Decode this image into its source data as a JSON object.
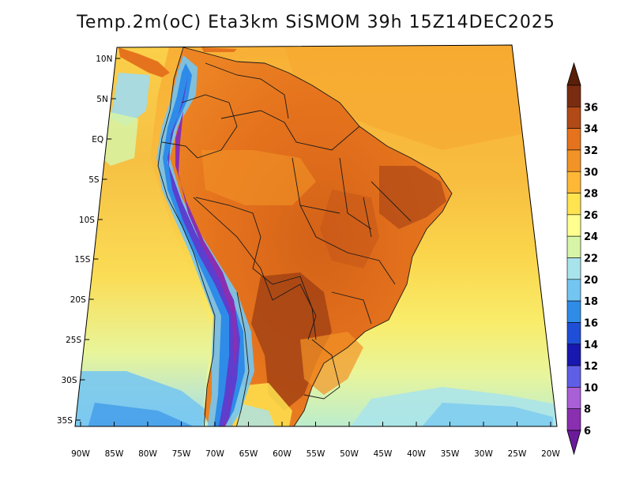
{
  "title": "Temp.2m(oC) Eta3km SiSMOM 39h 15Z14DEC2025",
  "map": {
    "variable": "2 m air temperature",
    "units": "oC",
    "lon_labels": [
      "90W",
      "85W",
      "80W",
      "75W",
      "70W",
      "65W",
      "60W",
      "55W",
      "50W",
      "45W",
      "40W",
      "35W",
      "30W",
      "25W",
      "20W"
    ],
    "lat_labels": [
      "10N",
      "5N",
      "EQ",
      "5S",
      "10S",
      "15S",
      "20S",
      "25S",
      "30S",
      "35S"
    ]
  },
  "colorbar": {
    "labels": [
      "6",
      "8",
      "10",
      "12",
      "14",
      "16",
      "18",
      "20",
      "22",
      "24",
      "26",
      "28",
      "30",
      "32",
      "34",
      "36"
    ],
    "colors": [
      "#8a2fb0",
      "#a95fd6",
      "#5e5ee6",
      "#1818b0",
      "#1f4fd8",
      "#2e8ce8",
      "#74c6f2",
      "#a9e4ec",
      "#d7f5a6",
      "#ffff8e",
      "#ffe34f",
      "#ffb835",
      "#f29327",
      "#e5731d",
      "#b14a17",
      "#7a2c10"
    ],
    "over_color": "#5a1f08",
    "under_color": "#6a1b9a"
  },
  "colors": {
    "ocean_north": "#f8ae33",
    "ocean_warm": "#f6c246",
    "ocean_mid": "#fbdf4d",
    "ocean_south": "#f4f58a",
    "ocean_cool": "#dff4a8",
    "ocean_cold": "#9fdcef",
    "land_hot": "#e5711c",
    "land_very_hot": "#a54314",
    "andes_cold": "#5b3fcf"
  }
}
